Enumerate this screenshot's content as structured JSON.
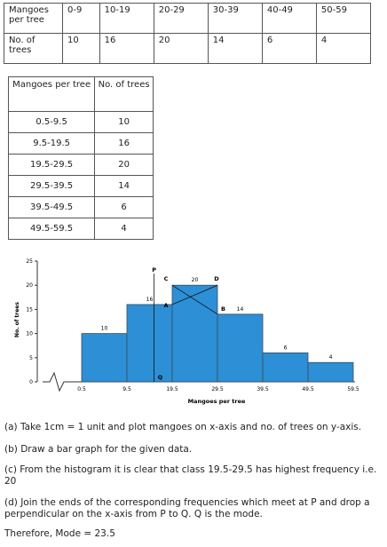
{
  "table1": {
    "row1_label": "Mangoes per tree",
    "row2_label": "No. of trees",
    "classes": [
      "0-9",
      "10-19",
      "20-29",
      "30-39",
      "40-49",
      "50-59"
    ],
    "counts": [
      "10",
      "16",
      "20",
      "14",
      "6",
      "4"
    ]
  },
  "table2": {
    "header": [
      "Mangoes per tree",
      "No. of trees"
    ],
    "rows": [
      [
        "0.5-9.5",
        "10"
      ],
      [
        "9.5-19.5",
        "16"
      ],
      [
        "19.5-29.5",
        "20"
      ],
      [
        "29.5-39.5",
        "14"
      ],
      [
        "39.5-49.5",
        "6"
      ],
      [
        "49.5-59.5",
        "4"
      ]
    ]
  },
  "chart_data": {
    "type": "bar",
    "title": "",
    "xlabel": "Mangoes per tree",
    "ylabel": "No. of trees",
    "categories": [
      "0.5-9.5",
      "9.5-19.5",
      "19.5-29.5",
      "29.5-39.5",
      "39.5-49.5",
      "49.5-59.5"
    ],
    "x_ticks": [
      "0.5",
      "9.5",
      "19.5",
      "29.5",
      "39.5",
      "49.5",
      "59.5"
    ],
    "values": [
      10,
      16,
      20,
      14,
      6,
      4
    ],
    "value_labels": [
      "10",
      "16",
      "20",
      "14",
      "6",
      "4"
    ],
    "y_ticks": [
      "0",
      "5",
      "10",
      "15",
      "20",
      "25"
    ],
    "ylim": [
      0,
      25
    ],
    "construction_points": {
      "A": "A",
      "B": "B",
      "C": "C",
      "D": "D",
      "P": "P",
      "Q": "Q"
    },
    "bar_color": "#2d8fd6"
  },
  "notes": [
    "(a) Take 1cm = 1 unit and plot mangoes on x-axis and no. of trees on y-axis.",
    "(b) Draw a bar graph for the given data.",
    "(c) From the histogram it is clear that class 19.5-29.5 has highest frequency i.e. 20",
    "(d) Join the ends of the corresponding frequencies which meet at P and drop a perpendicular on the x-axis from P to Q. Q is the mode.",
    "Therefore, Mode = 23.5"
  ]
}
